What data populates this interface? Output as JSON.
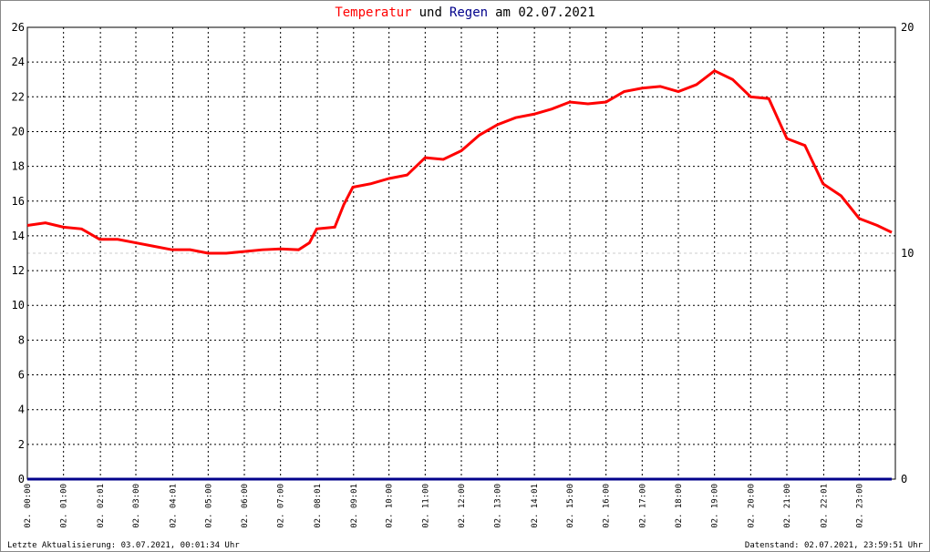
{
  "chart_data": {
    "type": "line",
    "title_parts": [
      "Temperatur",
      "und",
      "Regen",
      "am 02.07.2021"
    ],
    "title_colors": [
      "#ff0000",
      "#000000",
      "#00008b",
      "#000000"
    ],
    "x": [
      0,
      0.5,
      1,
      1.5,
      2,
      2.5,
      3,
      3.5,
      4,
      4.5,
      5,
      5.5,
      6,
      6.5,
      7,
      7.5,
      7.8,
      8,
      8.5,
      8.75,
      9,
      9.5,
      10,
      10.5,
      11,
      11.5,
      12,
      12.5,
      13,
      13.5,
      14,
      14.5,
      15,
      15.5,
      16,
      16.5,
      17,
      17.5,
      18,
      18.5,
      19,
      19.5,
      20,
      20.5,
      21,
      21.5,
      22,
      22.5,
      23,
      23.5,
      23.9
    ],
    "series": [
      {
        "name": "Temperatur",
        "color": "#ff0000",
        "axis": "y",
        "values": [
          14.6,
          14.75,
          14.5,
          14.4,
          13.8,
          13.8,
          13.6,
          13.4,
          13.2,
          13.2,
          13.0,
          13.0,
          13.1,
          13.2,
          13.25,
          13.2,
          13.6,
          14.4,
          14.5,
          15.8,
          16.8,
          17.0,
          17.3,
          17.5,
          18.5,
          18.4,
          18.9,
          19.8,
          20.4,
          20.8,
          21.0,
          21.3,
          21.7,
          21.6,
          21.7,
          22.3,
          22.5,
          22.6,
          22.3,
          22.7,
          23.5,
          23.0,
          22.0,
          21.9,
          19.6,
          19.2,
          17.0,
          16.3,
          15.0,
          14.6,
          14.2
        ]
      },
      {
        "name": "Regen",
        "color": "#00008b",
        "axis": "y2",
        "values": [
          0,
          0,
          0,
          0,
          0,
          0,
          0,
          0,
          0,
          0,
          0,
          0,
          0,
          0,
          0,
          0,
          0,
          0,
          0,
          0,
          0,
          0,
          0,
          0,
          0,
          0,
          0,
          0,
          0,
          0,
          0,
          0,
          0,
          0,
          0,
          0,
          0,
          0,
          0,
          0,
          0,
          0,
          0,
          0,
          0,
          0,
          0,
          0,
          0,
          0,
          0
        ]
      }
    ],
    "xlim": [
      0,
      24
    ],
    "xticks": [
      {
        "value": 0,
        "label": "02. 00:00"
      },
      {
        "value": 1,
        "label": "02. 01:00"
      },
      {
        "value": 2.02,
        "label": "02. 02:01"
      },
      {
        "value": 3,
        "label": "02. 03:00"
      },
      {
        "value": 4.02,
        "label": "02. 04:01"
      },
      {
        "value": 5,
        "label": "02. 05:00"
      },
      {
        "value": 6,
        "label": "02. 06:00"
      },
      {
        "value": 7,
        "label": "02. 07:00"
      },
      {
        "value": 8.02,
        "label": "02. 08:01"
      },
      {
        "value": 9.02,
        "label": "02. 09:01"
      },
      {
        "value": 10,
        "label": "02. 10:00"
      },
      {
        "value": 11,
        "label": "02. 11:00"
      },
      {
        "value": 12,
        "label": "02. 12:00"
      },
      {
        "value": 13,
        "label": "02. 13:00"
      },
      {
        "value": 14.02,
        "label": "02. 14:01"
      },
      {
        "value": 15,
        "label": "02. 15:00"
      },
      {
        "value": 16,
        "label": "02. 16:00"
      },
      {
        "value": 17,
        "label": "02. 17:00"
      },
      {
        "value": 18,
        "label": "02. 18:00"
      },
      {
        "value": 19,
        "label": "02. 19:00"
      },
      {
        "value": 20,
        "label": "02. 20:00"
      },
      {
        "value": 21,
        "label": "02. 21:00"
      },
      {
        "value": 22.02,
        "label": "02. 22:01"
      },
      {
        "value": 23,
        "label": "02. 23:00"
      }
    ],
    "ylim": [
      0,
      26
    ],
    "yticks": [
      0,
      2,
      4,
      6,
      8,
      10,
      12,
      14,
      16,
      18,
      20,
      22,
      24,
      26
    ],
    "y2lim": [
      0,
      20
    ],
    "y2ticks": [
      0,
      10,
      20
    ],
    "grid": true
  },
  "footer": {
    "left": "Letzte Aktualisierung: 03.07.2021, 00:01:34 Uhr",
    "right": "Datenstand: 02.07.2021, 23:59:51 Uhr"
  }
}
